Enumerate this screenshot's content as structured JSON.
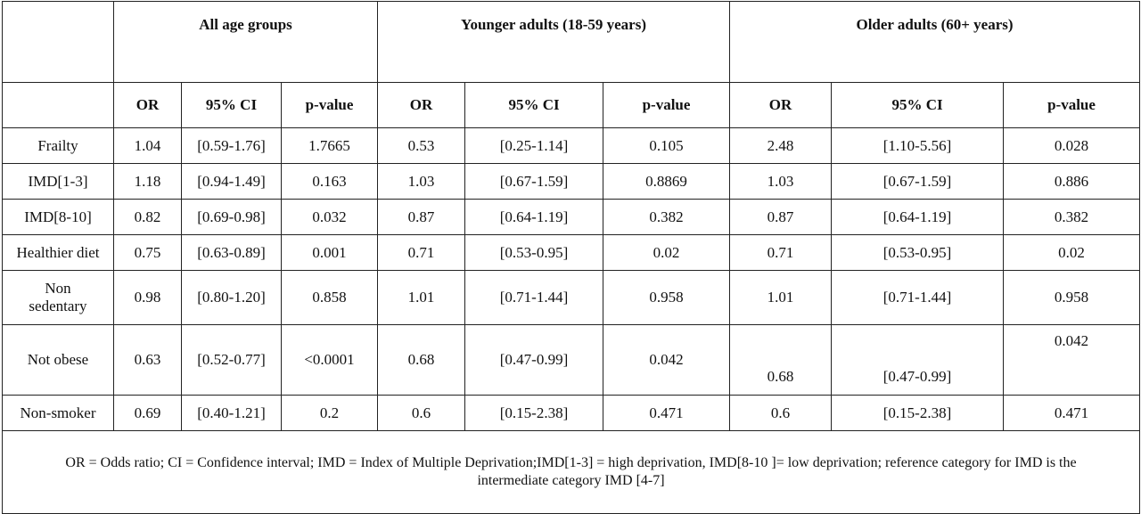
{
  "groups": [
    "All age groups",
    "Younger adults (18-59 years)",
    "Older  adults (60+ years)"
  ],
  "subheaders": [
    "OR",
    "95% CI",
    "p-value",
    "OR",
    "95% CI",
    "p-value",
    "OR",
    "95% CI",
    "p-value"
  ],
  "rows": [
    {
      "label": "Frailty",
      "cells": [
        "1.04",
        "[0.59-1.76]",
        "1.7665",
        "0.53",
        "[0.25-1.14]",
        "0.105",
        "2.48",
        "[1.10-5.56]",
        "0.028"
      ]
    },
    {
      "label": "IMD[1-3]",
      "cells": [
        "1.18",
        "[0.94-1.49]",
        "0.163",
        "1.03",
        "[0.67-1.59]",
        "0.8869",
        "1.03",
        "[0.67-1.59]",
        "0.886"
      ]
    },
    {
      "label": "IMD[8-10]",
      "cells": [
        "0.82",
        "[0.69-0.98]",
        "0.032",
        "0.87",
        "[0.64-1.19]",
        "0.382",
        "0.87",
        "[0.64-1.19]",
        "0.382"
      ]
    },
    {
      "label": "Healthier diet",
      "cells": [
        "0.75",
        "[0.63-0.89]",
        "0.001",
        "0.71",
        "[0.53-0.95]",
        "0.02",
        "0.71",
        "[0.53-0.95]",
        "0.02"
      ]
    },
    {
      "label_line1": "Non",
      "label_line2": "sedentary",
      "cells": [
        "0.98",
        "[0.80-1.20]",
        "0.858",
        "1.01",
        "[0.71-1.44]",
        "0.958",
        "1.01",
        "[0.71-1.44]",
        "0.958"
      ]
    },
    {
      "label": "Not obese",
      "cells": [
        "0.63",
        "[0.52-0.77]",
        "<0.0001",
        "0.68",
        "[0.47-0.99]",
        "0.042",
        "0.68",
        "[0.47-0.99]",
        "0.042"
      ]
    },
    {
      "label": "Non-smoker",
      "cells": [
        "0.69",
        "[0.40-1.21]",
        "0.2",
        "0.6",
        "[0.15-2.38]",
        "0.471",
        "0.6",
        "[0.15-2.38]",
        "0.471"
      ]
    }
  ],
  "footnote": "OR = Odds ratio; CI = Confidence interval; IMD = Index of Multiple Deprivation;IMD[1-3] = high deprivation, IMD[8-10 ]= low deprivation; reference category for IMD is the intermediate category  IMD [4-7]"
}
